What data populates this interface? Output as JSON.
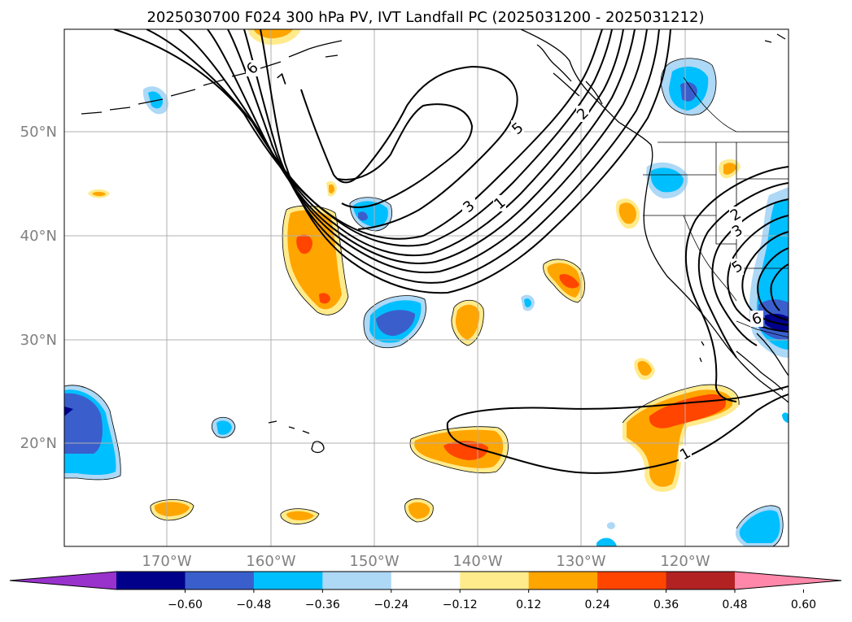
{
  "title": "2025030700 F024 300 hPa PV, IVT Landfall PC (2025031200 - 2025031212)",
  "lat_labels": [
    "50°N",
    "40°N",
    "30°N",
    "20°N"
  ],
  "lon_labels": [
    "170°W",
    "160°W",
    "150°W",
    "140°W",
    "130°W",
    "120°W"
  ],
  "colorbar": {
    "colors": [
      "#9932cc",
      "#00008b",
      "#3a5fcd",
      "#00bfff",
      "#add8f6",
      "#ffffff",
      "#ffeb8c",
      "#ffa500",
      "#ff4500",
      "#b22222",
      "#ff88aa"
    ],
    "tick_labels": [
      "−0.60",
      "−0.48",
      "−0.36",
      "−0.24",
      "−0.12",
      "0.12",
      "0.24",
      "0.36",
      "0.48",
      "0.60"
    ],
    "extend": "both"
  },
  "contour_labels": [
    "6",
    "7",
    "5",
    "2",
    "3",
    "1",
    "2",
    "3",
    "5",
    "6",
    "1"
  ]
}
